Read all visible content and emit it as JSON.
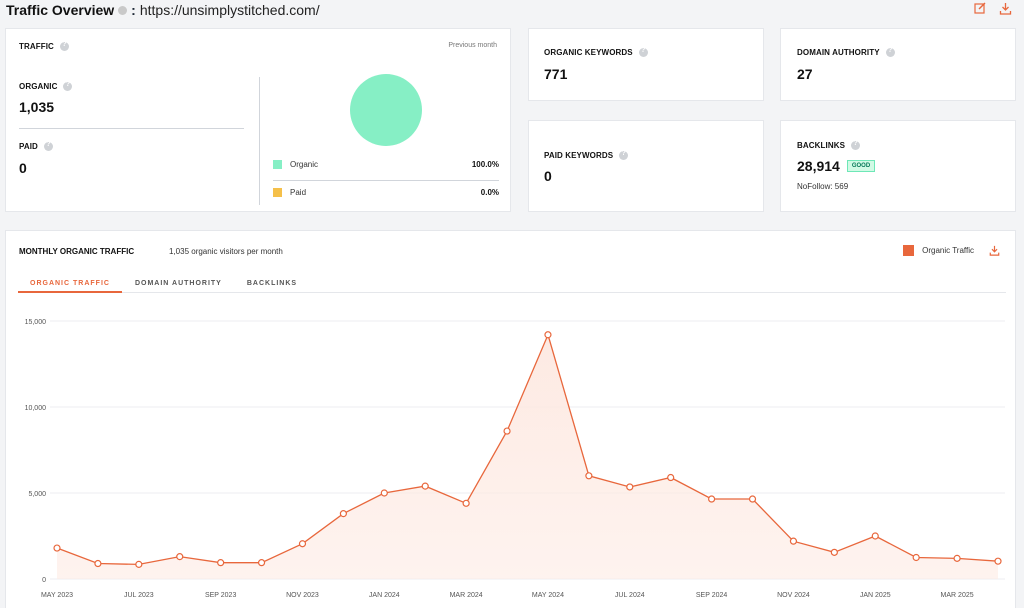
{
  "header": {
    "title": "Traffic Overview",
    "colon": ":",
    "url": "https://unsimplystitched.com/"
  },
  "traffic": {
    "label": "TRAFFIC",
    "period": "Previous month",
    "organic_label": "ORGANIC",
    "organic_value": "1,035",
    "paid_label": "PAID",
    "paid_value": "0",
    "legend": [
      {
        "name": "Organic",
        "pct": "100.0%",
        "color": "#86efc5"
      },
      {
        "name": "Paid",
        "pct": "0.0%",
        "color": "#f5c04a"
      }
    ],
    "pie_color": "#86efc5"
  },
  "organic_keywords": {
    "label": "ORGANIC KEYWORDS",
    "value": "771"
  },
  "paid_keywords": {
    "label": "PAID KEYWORDS",
    "value": "0"
  },
  "domain_authority": {
    "label": "DOMAIN AUTHORITY",
    "value": "27"
  },
  "backlinks": {
    "label": "BACKLINKS",
    "value": "28,914",
    "badge": "GOOD",
    "nofollow": "NoFollow: 569"
  },
  "monthly": {
    "title": "MONTHLY ORGANIC TRAFFIC",
    "subtitle": "1,035 organic visitors per month",
    "legend_label": "Organic Traffic",
    "tabs": [
      "ORGANIC TRAFFIC",
      "DOMAIN AUTHORITY",
      "BACKLINKS"
    ],
    "active_tab": 0,
    "accent": "#e8673c"
  },
  "chart_data": {
    "type": "area",
    "title": "",
    "xlabel": "",
    "ylabel": "",
    "ylim": [
      0,
      15000
    ],
    "yticks": [
      0,
      5000,
      10000,
      15000
    ],
    "ytick_labels": [
      "0",
      "5,000",
      "10,000",
      "15,000"
    ],
    "x": [
      "May 2023",
      "Jun 2023",
      "Jul 2023",
      "Aug 2023",
      "Sep 2023",
      "Oct 2023",
      "Nov 2023",
      "Dec 2023",
      "Jan 2024",
      "Feb 2024",
      "Mar 2024",
      "Apr 2024",
      "May 2024",
      "Jun 2024",
      "Jul 2024",
      "Aug 2024",
      "Sep 2024",
      "Oct 2024",
      "Nov 2024",
      "Dec 2024",
      "Jan 2025",
      "Feb 2025",
      "Mar 2025",
      "Apr 2025"
    ],
    "xtick_labels": [
      {
        "i": 0,
        "label": "MAY 2023"
      },
      {
        "i": 2,
        "label": "JUL 2023"
      },
      {
        "i": 4,
        "label": "SEP 2023"
      },
      {
        "i": 6,
        "label": "NOV 2023"
      },
      {
        "i": 8,
        "label": "JAN 2024"
      },
      {
        "i": 10,
        "label": "MAR 2024"
      },
      {
        "i": 12,
        "label": "MAY 2024"
      },
      {
        "i": 14,
        "label": "JUL 2024"
      },
      {
        "i": 16,
        "label": "SEP 2024"
      },
      {
        "i": 18,
        "label": "NOV 2024"
      },
      {
        "i": 20,
        "label": "JAN 2025"
      },
      {
        "i": 22,
        "label": "MAR 2025"
      }
    ],
    "series": [
      {
        "name": "Organic Traffic",
        "color": "#e8673c",
        "values": [
          1800,
          900,
          850,
          1300,
          950,
          950,
          2050,
          3800,
          5000,
          5400,
          4400,
          8600,
          14200,
          6000,
          5350,
          5900,
          4650,
          4650,
          2200,
          1550,
          2500,
          1250,
          1200,
          1035
        ]
      }
    ],
    "grid": true,
    "legend": "top-right"
  }
}
